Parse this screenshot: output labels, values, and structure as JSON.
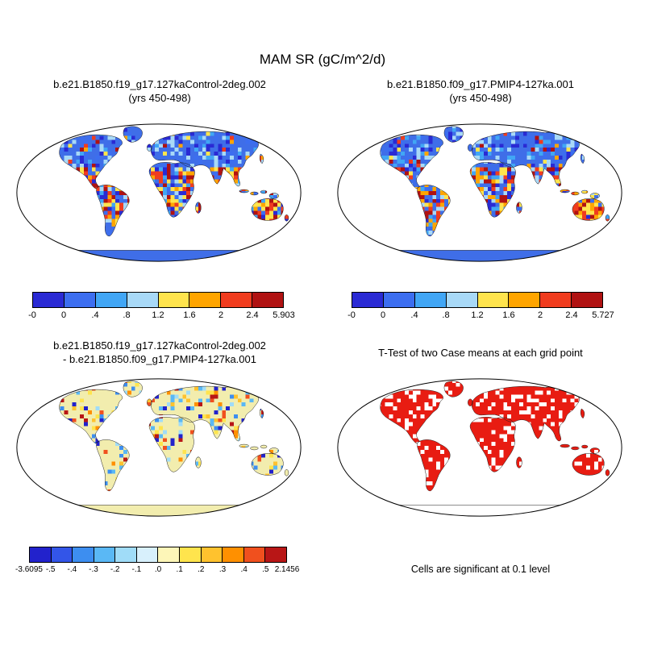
{
  "figure": {
    "title": "MAM SR (gC/m^2/d)"
  },
  "panels": {
    "top_left": {
      "title": "b.e21.B1850.f19_g17.127kaControl-2deg.002",
      "subtitle": "(yrs 450-498)",
      "map_style": "mean",
      "colorbar": {
        "colors": [
          "#2a2ad4",
          "#3c6ef0",
          "#41a6f5",
          "#a8d9f7",
          "#ffe44d",
          "#ffa500",
          "#f03c1e",
          "#b01212"
        ],
        "labels": [
          "-0",
          "0",
          ".4",
          ".8",
          "1.2",
          "1.6",
          "2",
          "2.4",
          "5.903"
        ]
      }
    },
    "top_right": {
      "title": "b.e21.B1850.f09_g17.PMIP4-127ka.001",
      "subtitle": "(yrs 450-498)",
      "map_style": "mean",
      "colorbar": {
        "colors": [
          "#2a2ad4",
          "#3c6ef0",
          "#41a6f5",
          "#a8d9f7",
          "#ffe44d",
          "#ffa500",
          "#f03c1e",
          "#b01212"
        ],
        "labels": [
          "-0",
          "0",
          ".4",
          ".8",
          "1.2",
          "1.6",
          "2",
          "2.4",
          "5.727"
        ]
      }
    },
    "bottom_left": {
      "title": "b.e21.B1850.f19_g17.127kaControl-2deg.002",
      "title_line2": "- b.e21.B1850.f09_g17.PMIP4-127ka.001",
      "map_style": "diff",
      "colorbar": {
        "colors": [
          "#2222cc",
          "#3355e8",
          "#3d8ef0",
          "#5ab8f5",
          "#a0dcf8",
          "#d8f0fc",
          "#fdf6b8",
          "#ffe44d",
          "#ffc22e",
          "#ff9000",
          "#f0501e",
          "#b81616"
        ],
        "labels": [
          "-3.6095",
          "-.5",
          "-.4",
          "-.3",
          "-.2",
          "-.1",
          ".0",
          ".1",
          ".2",
          ".3",
          ".4",
          ".5",
          "2.1456"
        ]
      }
    },
    "bottom_right": {
      "title": "T-Test of two Case means at each grid point",
      "map_style": "ttest",
      "caption": "Cells are significant at 0.1 level"
    }
  },
  "map_palettes": {
    "mean": {
      "land_base": "#3f6ee8",
      "antarctica": "#3f6ee8",
      "warm": [
        "#ffe44d",
        "#ffa500",
        "#f03c1e",
        "#b01212"
      ],
      "cool": [
        "#2a2ad4",
        "#3c6ef0",
        "#41a6f5",
        "#a8d9f7"
      ]
    },
    "diff": {
      "land_base": "#f2edae",
      "antarctica": "#f2edae",
      "warm": [
        "#ffe44d",
        "#ffc22e",
        "#ff9000",
        "#f0501e",
        "#b81616"
      ],
      "cool": [
        "#2222cc",
        "#3d8ef0",
        "#5ab8f5",
        "#a0dcf8"
      ]
    },
    "ttest": {
      "land_base": "#e81c12",
      "antarctica": "#ffffff",
      "speckle": "#ffffff"
    }
  },
  "chart_data": [
    {
      "type": "heatmap",
      "panel": "top-left",
      "title": "b.e21.B1850.f19_g17.127kaControl-2deg.002 (yrs 450-498)",
      "variable": "SR",
      "season": "MAM",
      "units": "gC/m^2/d",
      "levels": [
        "-0",
        "0",
        ".4",
        ".8",
        "1.2",
        "1.6",
        "2",
        "2.4",
        "5.903"
      ],
      "min_label": "-0",
      "max_label": "5.903",
      "projection": "robinson",
      "legend_position": "bottom"
    },
    {
      "type": "heatmap",
      "panel": "top-right",
      "title": "b.e21.B1850.f09_g17.PMIP4-127ka.001 (yrs 450-498)",
      "variable": "SR",
      "season": "MAM",
      "units": "gC/m^2/d",
      "levels": [
        "-0",
        "0",
        ".4",
        ".8",
        "1.2",
        "1.6",
        "2",
        "2.4",
        "5.727"
      ],
      "min_label": "-0",
      "max_label": "5.727",
      "projection": "robinson",
      "legend_position": "bottom"
    },
    {
      "type": "heatmap",
      "panel": "bottom-left",
      "title": "b.e21.B1850.f19_g17.127kaControl-2deg.002 - b.e21.B1850.f09_g17.PMIP4-127ka.001",
      "variable": "SR difference",
      "season": "MAM",
      "units": "gC/m^2/d",
      "levels": [
        "-3.6095",
        "-.5",
        "-.4",
        "-.3",
        "-.2",
        "-.1",
        ".0",
        ".1",
        ".2",
        ".3",
        ".4",
        ".5",
        "2.1456"
      ],
      "min_label": "-3.6095",
      "max_label": "2.1456",
      "projection": "robinson",
      "legend_position": "bottom"
    },
    {
      "type": "heatmap",
      "panel": "bottom-right",
      "title": "T-Test of two Case means at each grid point",
      "note": "Cells are significant at 0.1 level",
      "significance_level": "0.1",
      "projection": "robinson"
    }
  ]
}
